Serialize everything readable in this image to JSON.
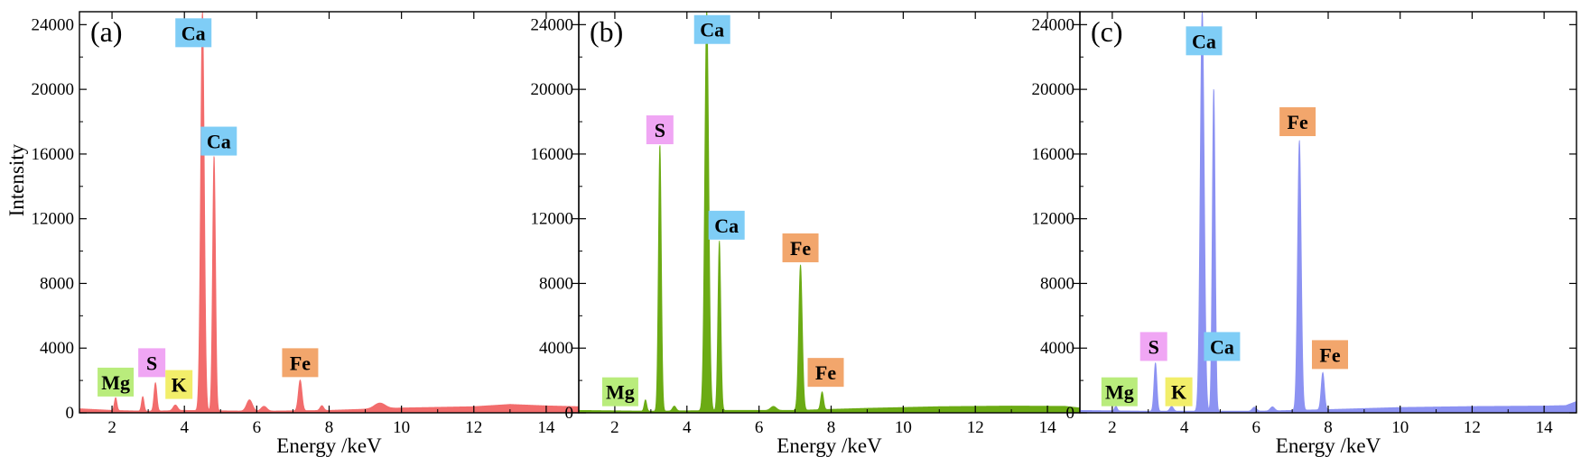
{
  "figure": {
    "y_axis_label": "Intensity",
    "x_axis_label": "Energy /keV"
  },
  "colors": {
    "label_boxes": {
      "Mg": "#b9ec7c",
      "S": "#f0a6f4",
      "K": "#f2ee6a",
      "Ca": "#7fcdf6",
      "Fe": "#f2a66c"
    }
  },
  "chart_data": [
    {
      "type": "area",
      "panel": "(a)",
      "color": "#f26c6c",
      "xlim": [
        1.1,
        14.9
      ],
      "ylim": [
        0,
        24800
      ],
      "x_ticks": [
        "2",
        "4",
        "6",
        "8",
        "10",
        "12",
        "14"
      ],
      "y_ticks": [
        "0",
        "4000",
        "8000",
        "12000",
        "16000",
        "20000",
        "24000"
      ],
      "baseline": [
        [
          1.1,
          250
        ],
        [
          2.0,
          150
        ],
        [
          3.0,
          100
        ],
        [
          4.0,
          150
        ],
        [
          6.0,
          100
        ],
        [
          8.0,
          150
        ],
        [
          10.0,
          300
        ],
        [
          12.0,
          380
        ],
        [
          13.0,
          520
        ],
        [
          14.0,
          430
        ],
        [
          14.9,
          380
        ]
      ],
      "peaks": [
        {
          "x": 2.1,
          "y": 800,
          "w": 0.035
        },
        {
          "x": 2.85,
          "y": 900,
          "w": 0.035
        },
        {
          "x": 3.2,
          "y": 1750,
          "w": 0.04
        },
        {
          "x": 3.75,
          "y": 350,
          "w": 0.06
        },
        {
          "x": 4.5,
          "y": 24800,
          "w": 0.05
        },
        {
          "x": 4.82,
          "y": 15800,
          "w": 0.04
        },
        {
          "x": 5.8,
          "y": 700,
          "w": 0.08
        },
        {
          "x": 6.2,
          "y": 300,
          "w": 0.08
        },
        {
          "x": 7.2,
          "y": 1900,
          "w": 0.05
        },
        {
          "x": 7.8,
          "y": 300,
          "w": 0.05
        },
        {
          "x": 9.4,
          "y": 350,
          "w": 0.15
        }
      ],
      "labels": [
        {
          "text": "Mg",
          "x": 2.1,
          "y": 1900
        },
        {
          "text": "S",
          "x": 3.1,
          "y": 3100
        },
        {
          "text": "K",
          "x": 3.85,
          "y": 1750
        },
        {
          "text": "Ca",
          "x": 4.25,
          "y": 23500
        },
        {
          "text": "Fe",
          "x": 7.2,
          "y": 3100
        },
        {
          "text": "Ca",
          "x": 4.95,
          "y": 16800
        }
      ]
    },
    {
      "type": "area",
      "panel": "(b)",
      "color": "#6bab14",
      "xlim": [
        1.0,
        14.9
      ],
      "ylim": [
        0,
        24800
      ],
      "x_ticks": [
        "2",
        "4",
        "6",
        "8",
        "10",
        "12",
        "14"
      ],
      "y_ticks": [
        "0",
        "4000",
        "8000",
        "12000",
        "16000",
        "20000",
        "24000"
      ],
      "baseline": [
        [
          1.0,
          150
        ],
        [
          3.0,
          100
        ],
        [
          5.0,
          150
        ],
        [
          7.0,
          150
        ],
        [
          9.0,
          280
        ],
        [
          11.0,
          380
        ],
        [
          13.0,
          420
        ],
        [
          14.5,
          400
        ],
        [
          14.9,
          300
        ]
      ],
      "peaks": [
        {
          "x": 2.85,
          "y": 700,
          "w": 0.035
        },
        {
          "x": 3.25,
          "y": 16500,
          "w": 0.04
        },
        {
          "x": 3.65,
          "y": 300,
          "w": 0.05
        },
        {
          "x": 4.55,
          "y": 24800,
          "w": 0.055
        },
        {
          "x": 4.9,
          "y": 10500,
          "w": 0.04
        },
        {
          "x": 7.15,
          "y": 9000,
          "w": 0.05
        },
        {
          "x": 7.75,
          "y": 1100,
          "w": 0.04
        },
        {
          "x": 6.4,
          "y": 250,
          "w": 0.08
        }
      ],
      "labels": [
        {
          "text": "Mg",
          "x": 2.15,
          "y": 1300
        },
        {
          "text": "S",
          "x": 3.25,
          "y": 17500
        },
        {
          "text": "Ca",
          "x": 4.7,
          "y": 23700
        },
        {
          "text": "Ca",
          "x": 5.1,
          "y": 11600
        },
        {
          "text": "Fe",
          "x": 7.15,
          "y": 10200
        },
        {
          "text": "Fe",
          "x": 7.85,
          "y": 2500
        }
      ]
    },
    {
      "type": "area",
      "panel": "(c)",
      "color": "#8c92f2",
      "xlim": [
        1.1,
        14.9
      ],
      "ylim": [
        0,
        24800
      ],
      "x_ticks": [
        "2",
        "4",
        "6",
        "8",
        "10",
        "12",
        "14"
      ],
      "y_ticks": [
        "0",
        "4000",
        "8000",
        "12000",
        "16000",
        "20000",
        "24000"
      ],
      "baseline": [
        [
          1.1,
          150
        ],
        [
          3.0,
          100
        ],
        [
          6.0,
          100
        ],
        [
          8.0,
          200
        ],
        [
          10.0,
          330
        ],
        [
          12.0,
          390
        ],
        [
          14.0,
          420
        ],
        [
          14.6,
          450
        ],
        [
          14.9,
          700
        ]
      ],
      "peaks": [
        {
          "x": 2.1,
          "y": 300,
          "w": 0.035
        },
        {
          "x": 3.2,
          "y": 3000,
          "w": 0.04
        },
        {
          "x": 3.65,
          "y": 300,
          "w": 0.05
        },
        {
          "x": 4.5,
          "y": 24800,
          "w": 0.055
        },
        {
          "x": 4.82,
          "y": 20000,
          "w": 0.04
        },
        {
          "x": 5.95,
          "y": 250,
          "w": 0.06
        },
        {
          "x": 6.45,
          "y": 250,
          "w": 0.06
        },
        {
          "x": 7.2,
          "y": 16700,
          "w": 0.05
        },
        {
          "x": 7.85,
          "y": 2300,
          "w": 0.045
        }
      ],
      "labels": [
        {
          "text": "Mg",
          "x": 2.2,
          "y": 1300
        },
        {
          "text": "S",
          "x": 3.15,
          "y": 4100
        },
        {
          "text": "K",
          "x": 3.85,
          "y": 1300
        },
        {
          "text": "Ca",
          "x": 4.55,
          "y": 23000
        },
        {
          "text": "Ca",
          "x": 5.05,
          "y": 4100
        },
        {
          "text": "Fe",
          "x": 7.15,
          "y": 18000
        },
        {
          "text": "Fe",
          "x": 8.05,
          "y": 3600
        }
      ]
    }
  ]
}
